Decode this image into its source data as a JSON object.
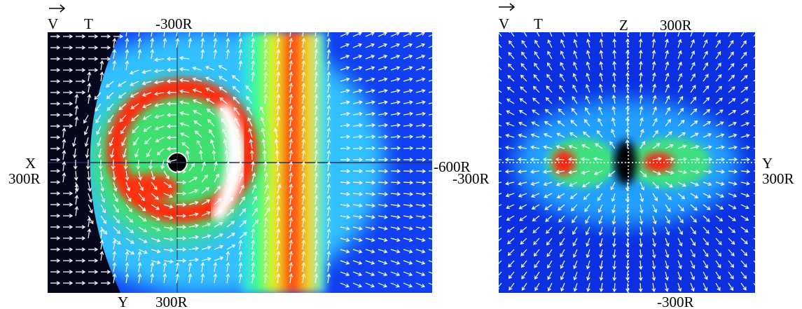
{
  "panels": [
    {
      "labels": {
        "velocity": "V",
        "time": "T",
        "top_scale": "-300R",
        "left_axis": "X",
        "left_scale": "300R",
        "right_scale": "-600R",
        "bottom_axis": "Y",
        "bottom_scale": "300R"
      }
    },
    {
      "labels": {
        "velocity": "V",
        "time": "T",
        "top_axis": "Z",
        "top_scale": "300R",
        "right_axis": "Y",
        "right_scale": "300R",
        "left_scale": "-300R",
        "bottom_scale": "-300R"
      }
    }
  ]
}
